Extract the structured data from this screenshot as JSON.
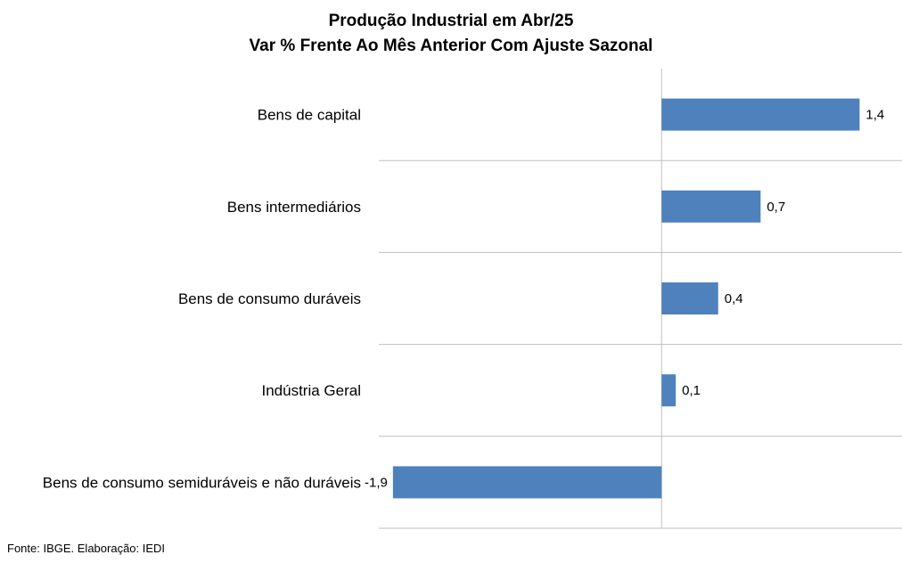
{
  "chart_data": {
    "type": "bar",
    "orientation": "horizontal",
    "title": "Produção Industrial em Abr/25",
    "subtitle": "Var % Frente Ao Mês Anterior Com Ajuste Sazonal",
    "categories": [
      "Bens de capital",
      "Bens intermediários",
      "Bens de consumo duráveis",
      "Indústria Geral",
      "Bens de consumo semiduráveis e não duráveis"
    ],
    "values": [
      1.4,
      0.7,
      0.4,
      0.1,
      -1.9
    ],
    "value_labels": [
      "1,4",
      "0,7",
      "0,4",
      "0,1",
      "-1,9"
    ],
    "xlim": [
      -2.0,
      1.7
    ],
    "grid": "horizontal separators between categories",
    "legend": "none",
    "bar_color": "#4F81BD"
  },
  "footer": {
    "source": "Fonte: IBGE. Elaboração: IEDI"
  },
  "colors": {
    "bar": "#4F81BD",
    "gridline": "#BFBFBF",
    "axis": "#BFBFBF"
  }
}
